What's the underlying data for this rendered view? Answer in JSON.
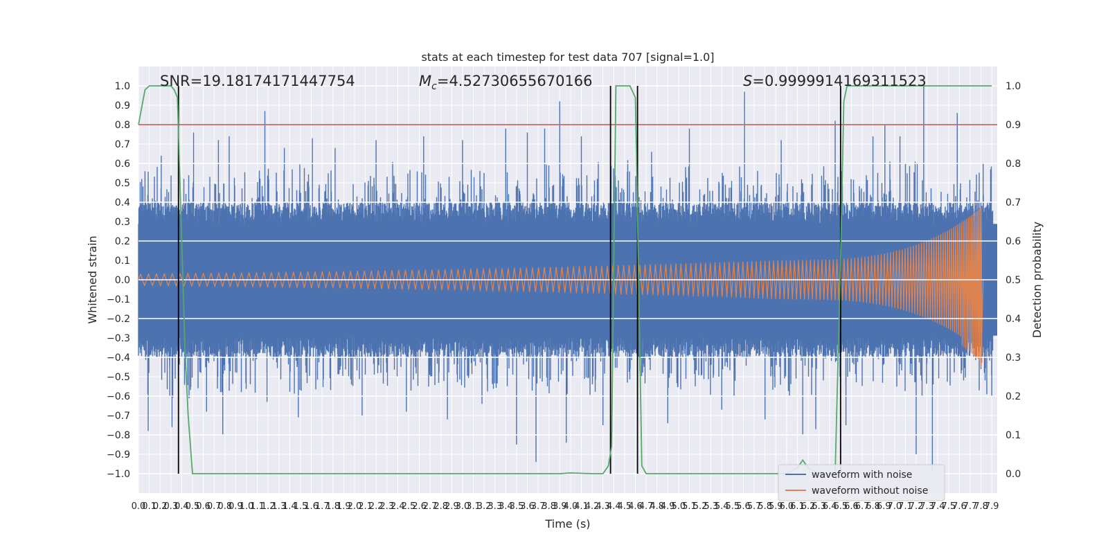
{
  "chart_data": {
    "type": "line",
    "title": "stats at each timestep for test data 707 [signal=1.0]",
    "xlabel": "Time (s)",
    "ylabel": "Whitened strain",
    "ylabel_right": "Detection probability",
    "xlim": [
      0.0,
      7.95
    ],
    "ylim": [
      -1.1,
      1.1
    ],
    "ylim_right": [
      -0.05,
      1.05
    ],
    "grid": true,
    "legend_position": "lower-right",
    "x_ticks": [
      "0.0",
      "0.1",
      "0.2",
      "0.3",
      "0.4",
      "0.5",
      "0.6",
      "0.7",
      "0.8",
      "0.9",
      "1.0",
      "1.1",
      "1.2",
      "1.3",
      "1.4",
      "1.5",
      "1.6",
      "1.7",
      "1.8",
      "1.9",
      "2.0",
      "2.1",
      "2.2",
      "2.3",
      "2.4",
      "2.5",
      "2.6",
      "2.7",
      "2.8",
      "2.9",
      "3.0",
      "3.1",
      "3.2",
      "3.3",
      "3.4",
      "3.5",
      "3.6",
      "3.7",
      "3.8",
      "3.9",
      "4.0",
      "4.1",
      "4.2",
      "4.3",
      "4.4",
      "4.5",
      "4.6",
      "4.7",
      "4.8",
      "4.9",
      "5.0",
      "5.1",
      "5.2",
      "5.3",
      "5.4",
      "5.5",
      "5.6",
      "5.7",
      "5.8",
      "5.9",
      "6.0",
      "6.1",
      "6.2",
      "6.3",
      "6.4",
      "6.5",
      "6.6",
      "6.7",
      "6.8",
      "6.9",
      "7.0",
      "7.1",
      "7.2",
      "7.3",
      "7.4",
      "7.5",
      "7.6",
      "7.7",
      "7.8",
      "7.9"
    ],
    "y_ticks": [
      "1.0",
      "0.9",
      "0.8",
      "0.7",
      "0.6",
      "0.5",
      "0.4",
      "0.3",
      "0.2",
      "0.1",
      "0.0",
      "−0.1",
      "−0.2",
      "−0.3",
      "−0.4",
      "−0.5",
      "−0.6",
      "−0.7",
      "−0.8",
      "−0.9",
      "−1.0"
    ],
    "y_ticks_right": [
      "1.0",
      "0.9",
      "0.8",
      "0.7",
      "0.6",
      "0.5",
      "0.4",
      "0.3",
      "0.2",
      "0.1",
      "0.0"
    ],
    "annotations": [
      {
        "prefix": "SNR=",
        "value": "19.18174171447754"
      },
      {
        "symbol": "M",
        "sub": "c",
        "prefix": "=",
        "value": "4.52730655670166"
      },
      {
        "symbol": "S",
        "prefix": "=",
        "value": "0.9999914169311523"
      }
    ],
    "threshold": {
      "value": 0.9,
      "axis": "right",
      "color": "#c44e52"
    },
    "event_markers_x": [
      0.37,
      4.37,
      4.62,
      6.5
    ],
    "series": [
      {
        "name": "waveform with noise",
        "color": "#4c72b0",
        "axis": "left",
        "envelope_width": 0.4,
        "spikes": [
          [
            0.03,
            0.52
          ],
          [
            0.06,
            0.56
          ],
          [
            0.09,
            -0.78
          ],
          [
            0.21,
            0.64
          ],
          [
            0.29,
            -0.6
          ],
          [
            0.31,
            -0.76
          ],
          [
            0.39,
            -0.34
          ],
          [
            0.51,
            0.76
          ],
          [
            0.63,
            -0.68
          ],
          [
            0.74,
            0.72
          ],
          [
            0.78,
            -0.8
          ],
          [
            0.84,
            0.74
          ],
          [
            1.17,
            0.87
          ],
          [
            1.19,
            -0.63
          ],
          [
            1.35,
            0.68
          ],
          [
            1.48,
            -0.71
          ],
          [
            1.61,
            0.73
          ],
          [
            1.82,
            0.68
          ],
          [
            2.07,
            -0.7
          ],
          [
            2.2,
            0.72
          ],
          [
            2.48,
            -0.68
          ],
          [
            2.64,
            0.74
          ],
          [
            2.86,
            -0.72
          ],
          [
            3.0,
            0.72
          ],
          [
            3.18,
            -0.64
          ],
          [
            3.4,
            0.78
          ],
          [
            3.5,
            -0.85
          ],
          [
            3.6,
            0.76
          ],
          [
            3.68,
            -0.94
          ],
          [
            3.76,
            0.78
          ],
          [
            3.9,
            0.92
          ],
          [
            3.96,
            -0.84
          ],
          [
            4.1,
            0.74
          ],
          [
            4.3,
            -0.75
          ],
          [
            4.37,
            0.45
          ],
          [
            4.62,
            -0.98
          ],
          [
            4.75,
            0.66
          ],
          [
            4.9,
            -0.74
          ],
          [
            5.1,
            0.78
          ],
          [
            5.4,
            -0.67
          ],
          [
            5.61,
            0.97
          ],
          [
            5.8,
            -0.72
          ],
          [
            5.95,
            0.72
          ],
          [
            6.15,
            -0.8
          ],
          [
            6.27,
            -0.77
          ],
          [
            6.45,
            0.82
          ],
          [
            6.55,
            -0.75
          ],
          [
            6.8,
            0.74
          ],
          [
            6.91,
            0.8
          ],
          [
            7.05,
            0.74
          ],
          [
            7.2,
            -0.9
          ],
          [
            7.27,
            1.0
          ],
          [
            7.35,
            -0.98
          ],
          [
            7.58,
            0.86
          ],
          [
            7.82,
            0.6
          ],
          [
            7.9,
            -0.6
          ]
        ]
      },
      {
        "name": "waveform without noise",
        "color": "#dd8452",
        "axis": "left",
        "chirp_end_x": 7.8,
        "amplitude_start": 0.03,
        "amplitude_6s": 0.1,
        "amplitude_peak": 0.37,
        "amplitude_min": -0.45
      },
      {
        "name": "detection probability",
        "color": "#55a868",
        "axis": "right",
        "x": [
          0.0,
          0.06,
          0.1,
          0.15,
          0.2,
          0.25,
          0.3,
          0.33,
          0.36,
          0.4,
          0.43,
          0.46,
          0.5,
          0.55,
          0.6,
          1.0,
          2.0,
          3.0,
          3.9,
          4.0,
          4.2,
          4.3,
          4.35,
          4.38,
          4.42,
          4.45,
          4.5,
          4.55,
          4.6,
          4.63,
          4.66,
          4.7,
          5.0,
          5.5,
          6.0,
          6.1,
          6.15,
          6.2,
          6.3,
          6.45,
          6.5,
          6.53,
          6.56,
          6.6,
          7.0,
          7.5,
          7.9
        ],
        "y": [
          0.9,
          0.99,
          1.0,
          1.0,
          1.0,
          1.0,
          1.0,
          0.99,
          0.97,
          0.6,
          0.32,
          0.15,
          0.0,
          0.0,
          0.0,
          0.0,
          0.0,
          0.0,
          0.0,
          0.002,
          0.0,
          0.0,
          0.02,
          0.07,
          1.0,
          1.0,
          1.0,
          1.0,
          0.97,
          0.5,
          0.02,
          0.0,
          0.0,
          0.0,
          0.0,
          0.015,
          0.035,
          0.015,
          0.0,
          0.0,
          0.55,
          0.96,
          1.0,
          1.0,
          1.0,
          1.0,
          1.0
        ]
      }
    ]
  }
}
